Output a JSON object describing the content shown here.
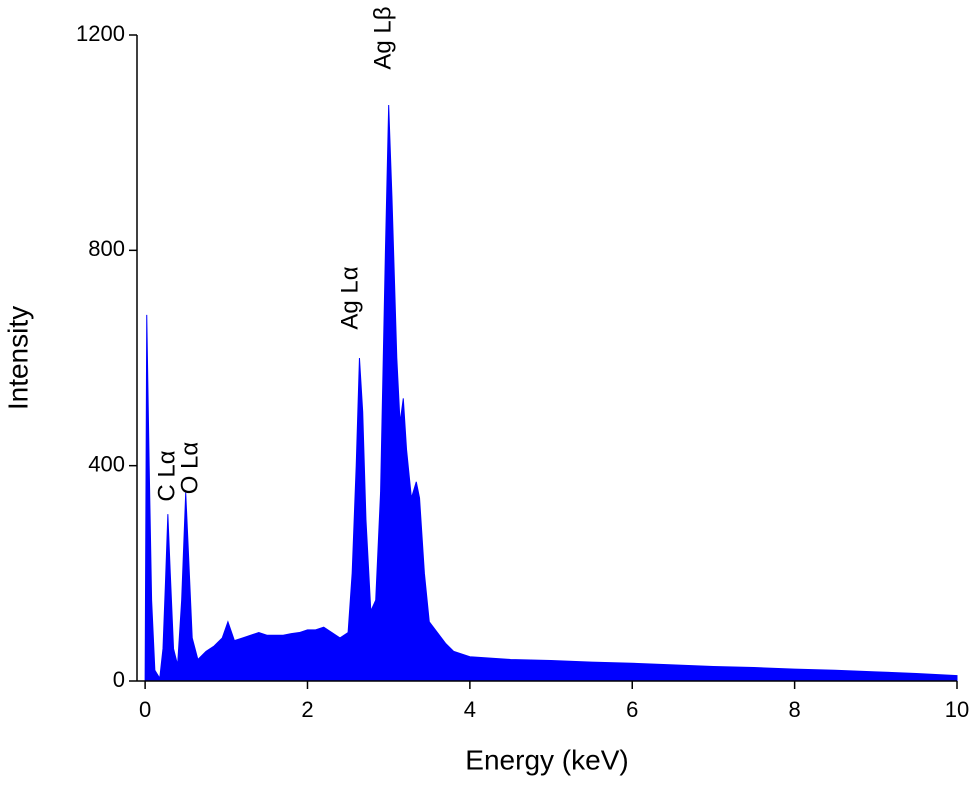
{
  "chart_data": {
    "type": "area",
    "xlabel": "Energy (keV)",
    "ylabel": "Intensity",
    "xlim": [
      -0.1,
      10
    ],
    "xticks": [
      0,
      2,
      4,
      6,
      8,
      10
    ],
    "ylim": [
      0,
      1200
    ],
    "yticks": [
      0,
      400,
      800,
      1200
    ],
    "annotations": [
      "C Lα",
      "O Lα",
      "Ag Lα",
      "Ag Lβ"
    ],
    "x": [
      0,
      0.02,
      0.05,
      0.08,
      0.12,
      0.18,
      0.22,
      0.25,
      0.28,
      0.31,
      0.35,
      0.4,
      0.45,
      0.5,
      0.53,
      0.58,
      0.65,
      0.75,
      0.85,
      0.95,
      1.02,
      1.1,
      1.2,
      1.3,
      1.4,
      1.5,
      1.6,
      1.7,
      1.8,
      1.9,
      2.0,
      2.1,
      2.2,
      2.3,
      2.4,
      2.5,
      2.55,
      2.6,
      2.64,
      2.68,
      2.72,
      2.78,
      2.84,
      2.9,
      2.96,
      3.0,
      3.04,
      3.1,
      3.14,
      3.18,
      3.22,
      3.28,
      3.34,
      3.38,
      3.44,
      3.5,
      3.6,
      3.7,
      3.8,
      4.0,
      4.5,
      5.0,
      5.5,
      6.0,
      6.5,
      7.0,
      7.5,
      8.0,
      8.5,
      9.0,
      9.5,
      10.0
    ],
    "series": [
      {
        "color": "#0000ff",
        "values": [
          0,
          680,
          400,
          150,
          20,
          5,
          60,
          180,
          310,
          200,
          60,
          30,
          150,
          350,
          250,
          80,
          40,
          55,
          65,
          80,
          110,
          75,
          80,
          85,
          90,
          85,
          85,
          85,
          88,
          90,
          95,
          95,
          100,
          90,
          80,
          90,
          200,
          400,
          600,
          500,
          300,
          130,
          150,
          350,
          800,
          1070,
          900,
          600,
          480,
          525,
          430,
          340,
          370,
          340,
          200,
          110,
          90,
          70,
          55,
          45,
          40,
          38,
          35,
          33,
          30,
          27,
          25,
          22,
          20,
          17,
          14,
          10
        ]
      }
    ]
  }
}
